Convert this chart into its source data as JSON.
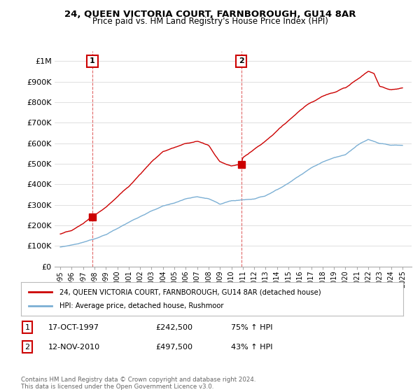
{
  "title": "24, QUEEN VICTORIA COURT, FARNBOROUGH, GU14 8AR",
  "subtitle": "Price paid vs. HM Land Registry's House Price Index (HPI)",
  "legend_line1": "24, QUEEN VICTORIA COURT, FARNBOROUGH, GU14 8AR (detached house)",
  "legend_line2": "HPI: Average price, detached house, Rushmoor",
  "annotation1_label": "1",
  "annotation1_date": "17-OCT-1997",
  "annotation1_price": "£242,500",
  "annotation1_hpi": "75% ↑ HPI",
  "annotation2_label": "2",
  "annotation2_date": "12-NOV-2010",
  "annotation2_price": "£497,500",
  "annotation2_hpi": "43% ↑ HPI",
  "footnote": "Contains HM Land Registry data © Crown copyright and database right 2024.\nThis data is licensed under the Open Government Licence v3.0.",
  "red_color": "#cc0000",
  "blue_color": "#7bafd4",
  "background_color": "#ffffff",
  "grid_color": "#e0e0e0",
  "ylim": [
    0,
    1050000
  ],
  "yticks": [
    0,
    100000,
    200000,
    300000,
    400000,
    500000,
    600000,
    700000,
    800000,
    900000,
    1000000
  ],
  "ytick_labels": [
    "£0",
    "£100K",
    "£200K",
    "£300K",
    "£400K",
    "£500K",
    "£600K",
    "£700K",
    "£800K",
    "£900K",
    "£1M"
  ],
  "sale1_x": 1997.8,
  "sale1_y": 242500,
  "sale2_x": 2010.87,
  "sale2_y": 497500,
  "xlim_left": 1994.5,
  "xlim_right": 2025.8,
  "hpi_years": [
    1995,
    1996,
    1997,
    1998,
    1999,
    2000,
    2001,
    2002,
    2003,
    2004,
    2005,
    2006,
    2007,
    2008,
    2009,
    2010,
    2011,
    2012,
    2013,
    2014,
    2015,
    2016,
    2017,
    2018,
    2019,
    2020,
    2021,
    2022,
    2023,
    2024,
    2025
  ],
  "hpi_vals": [
    95000,
    105000,
    118000,
    135000,
    155000,
    185000,
    215000,
    245000,
    270000,
    295000,
    310000,
    330000,
    340000,
    330000,
    305000,
    320000,
    325000,
    330000,
    345000,
    375000,
    405000,
    445000,
    480000,
    510000,
    530000,
    545000,
    590000,
    620000,
    600000,
    590000,
    590000
  ],
  "red_years": [
    1995,
    1996,
    1997,
    1997.8,
    1999,
    2000,
    2001,
    2002,
    2003,
    2004,
    2005,
    2006,
    2007,
    2008,
    2009,
    2010,
    2010.87,
    2011,
    2012,
    2013,
    2014,
    2015,
    2016,
    2017,
    2018,
    2019,
    2020,
    2021,
    2022,
    2022.5,
    2023,
    2024,
    2025
  ],
  "red_vals": [
    160000,
    175000,
    210000,
    242500,
    290000,
    340000,
    390000,
    450000,
    510000,
    560000,
    580000,
    600000,
    610000,
    590000,
    510000,
    490000,
    497500,
    530000,
    570000,
    610000,
    660000,
    710000,
    760000,
    800000,
    830000,
    850000,
    870000,
    910000,
    950000,
    940000,
    880000,
    860000,
    870000
  ]
}
